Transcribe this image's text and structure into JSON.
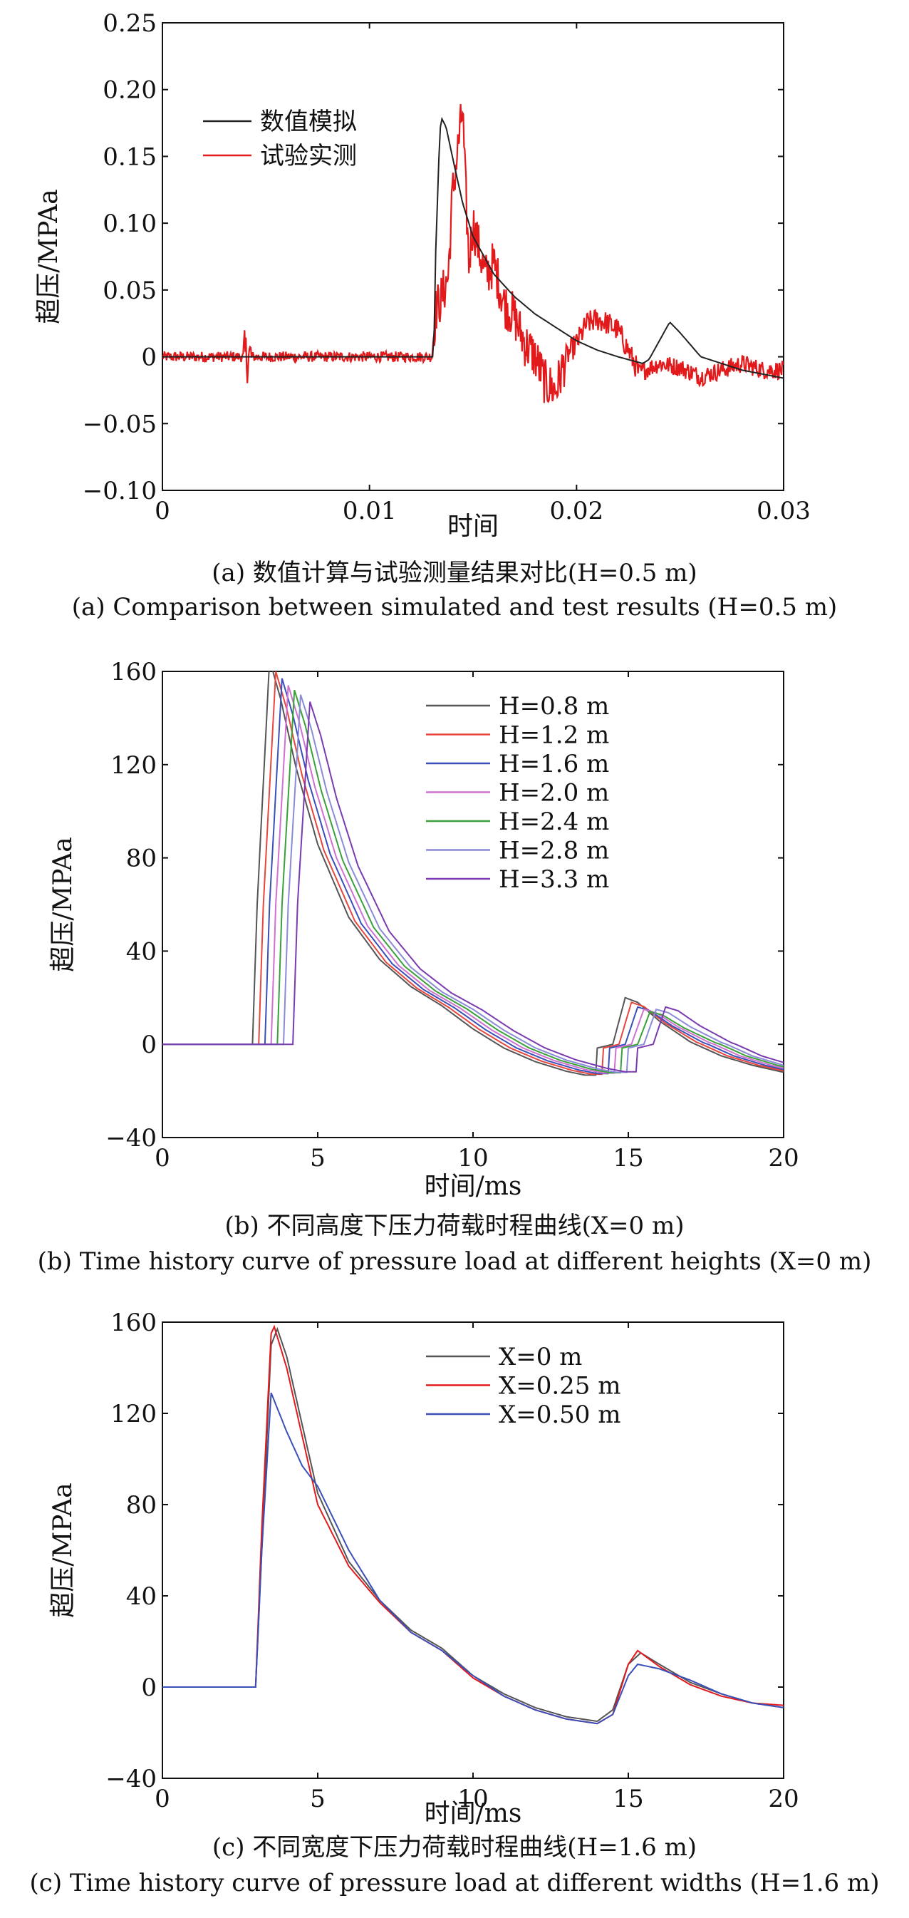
{
  "chart_data": [
    {
      "type": "line",
      "ylabel": "超压/MPAa",
      "xlabel": "时间",
      "xlim": [
        0,
        0.03
      ],
      "ylim": [
        -0.1,
        0.25
      ],
      "xticks": [
        "0",
        "0.01",
        "0.02",
        "0.03"
      ],
      "yticks": [
        "0.25",
        "0.20",
        "0.15",
        "0.10",
        "0.05",
        "0",
        "−0.05",
        "−0.10"
      ],
      "legend_position": "top-left",
      "caption_cn": "(a) 数值计算与试验测量结果对比(H=0.5 m)",
      "caption_en": "(a) Comparison between simulated and test results (H=0.5 m)",
      "series": [
        {
          "name": "数值模拟",
          "color": "#222222",
          "x": [
            0,
            0.0131,
            0.0132,
            0.0134,
            0.0135,
            0.0137,
            0.014,
            0.0145,
            0.015,
            0.016,
            0.017,
            0.018,
            0.019,
            0.02,
            0.021,
            0.022,
            0.0232,
            0.0235,
            0.024,
            0.0245,
            0.025,
            0.026,
            0.028,
            0.03
          ],
          "y": [
            0,
            0,
            0.08,
            0.17,
            0.178,
            0.172,
            0.15,
            0.115,
            0.09,
            0.062,
            0.045,
            0.032,
            0.022,
            0.012,
            0.005,
            0.0,
            -0.005,
            -0.002,
            0.012,
            0.026,
            0.018,
            0.0,
            -0.01,
            -0.016
          ]
        },
        {
          "name": "试验实测",
          "color": "#e31a1c",
          "x": [
            0,
            0.013,
            0.0132,
            0.0135,
            0.0138,
            0.014,
            0.0143,
            0.0145,
            0.0146,
            0.0148,
            0.015,
            0.0153,
            0.0156,
            0.016,
            0.0165,
            0.017,
            0.0175,
            0.018,
            0.0185,
            0.019,
            0.0195,
            0.02,
            0.0205,
            0.021,
            0.0215,
            0.022,
            0.0225,
            0.023,
            0.024,
            0.025,
            0.026,
            0.027,
            0.028,
            0.029,
            0.03
          ],
          "y": [
            0,
            0,
            0.035,
            0.045,
            0.06,
            0.12,
            0.16,
            0.185,
            0.14,
            0.07,
            0.1,
            0.08,
            0.06,
            0.07,
            0.04,
            0.03,
            0.01,
            0.0,
            -0.02,
            -0.025,
            0.0,
            0.01,
            0.025,
            0.028,
            0.025,
            0.02,
            0.005,
            -0.012,
            -0.005,
            -0.008,
            -0.015,
            -0.01,
            -0.005,
            -0.01,
            -0.01
          ]
        }
      ]
    },
    {
      "type": "line",
      "ylabel": "超压/MPAa",
      "xlabel": "时间/ms",
      "xlim": [
        0,
        20
      ],
      "ylim": [
        -40,
        160
      ],
      "xticks": [
        "0",
        "5",
        "10",
        "15",
        "20"
      ],
      "yticks": [
        "160",
        "120",
        "80",
        "40",
        "0",
        "−40"
      ],
      "legend_position": "top-right",
      "caption_cn": "(b) 不同高度下压力荷载时程曲线(X=0 m)",
      "caption_en": "(b) Time history curve of pressure load at different heights (X=0 m)",
      "series": [
        {
          "name": "H=0.8 m",
          "color": "#555555",
          "shift": 0.0,
          "peak": 165,
          "late": 20
        },
        {
          "name": "H=1.2 m",
          "color": "#e8453c",
          "shift": 0.2,
          "peak": 160,
          "late": 18
        },
        {
          "name": "H=1.6 m",
          "color": "#3a4fb8",
          "shift": 0.4,
          "peak": 157,
          "late": 16
        },
        {
          "name": "H=2.0 m",
          "color": "#d070d0",
          "shift": 0.6,
          "peak": 154,
          "late": 15
        },
        {
          "name": "H=2.4 m",
          "color": "#3aa03a",
          "shift": 0.8,
          "peak": 152,
          "late": 14
        },
        {
          "name": "H=2.8 m",
          "color": "#8a8ad8",
          "shift": 1.0,
          "peak": 150,
          "late": 15
        },
        {
          "name": "H=3.3 m",
          "color": "#7a3ab0",
          "shift": 1.3,
          "peak": 147,
          "late": 16
        }
      ]
    },
    {
      "type": "line",
      "ylabel": "超压/MPAa",
      "xlabel": "时间/ms",
      "xlim": [
        0,
        20
      ],
      "ylim": [
        -40,
        160
      ],
      "xticks": [
        "0",
        "5",
        "10",
        "15",
        "20"
      ],
      "yticks": [
        "160",
        "120",
        "80",
        "40",
        "0",
        "−40"
      ],
      "legend_position": "top-right",
      "caption_cn": "(c) 不同宽度下压力荷载时程曲线(H=1.6 m)",
      "caption_en": "(c) Time history curve of pressure load at different widths (H=1.6 m)",
      "series": [
        {
          "name": "X=0 m",
          "color": "#555555",
          "x": [
            0,
            3.0,
            3.2,
            3.5,
            3.7,
            4.0,
            4.5,
            5.0,
            6.0,
            7.0,
            8.0,
            9.0,
            10.0,
            11.0,
            12.0,
            13.0,
            14.0,
            14.5,
            15.0,
            15.4,
            16.0,
            17.0,
            18.0,
            19.0,
            20.0
          ],
          "y": [
            0,
            0,
            60,
            150,
            157,
            145,
            115,
            85,
            55,
            38,
            25,
            17,
            5,
            -3,
            -9,
            -13,
            -15,
            -10,
            10,
            15,
            10,
            2,
            -3,
            -7,
            -9
          ]
        },
        {
          "name": "X=0.25 m",
          "color": "#e31a1c",
          "x": [
            0,
            3.0,
            3.2,
            3.5,
            3.6,
            4.0,
            4.5,
            5.0,
            6.0,
            7.0,
            8.0,
            9.0,
            10.0,
            11.0,
            12.0,
            13.0,
            14.0,
            14.5,
            15.0,
            15.3,
            16.0,
            17.0,
            18.0,
            19.0,
            20.0
          ],
          "y": [
            0,
            0,
            70,
            155,
            158,
            140,
            110,
            80,
            53,
            37,
            24,
            16,
            4,
            -4,
            -10,
            -14,
            -16,
            -12,
            10,
            16,
            9,
            1,
            -4,
            -7,
            -8
          ]
        },
        {
          "name": "X=0.50 m",
          "color": "#3a4fb8",
          "x": [
            0,
            3.0,
            3.2,
            3.5,
            4.0,
            4.5,
            5.0,
            6.0,
            7.0,
            8.0,
            9.0,
            10.0,
            11.0,
            12.0,
            13.0,
            14.0,
            14.5,
            15.0,
            15.3,
            16.0,
            17.0,
            18.0,
            19.0,
            20.0
          ],
          "y": [
            0,
            0,
            60,
            129,
            112,
            97,
            88,
            60,
            38,
            24,
            16,
            5,
            -4,
            -10,
            -14,
            -16,
            -12,
            5,
            10,
            8,
            3,
            -3,
            -7,
            -9
          ]
        }
      ]
    }
  ]
}
